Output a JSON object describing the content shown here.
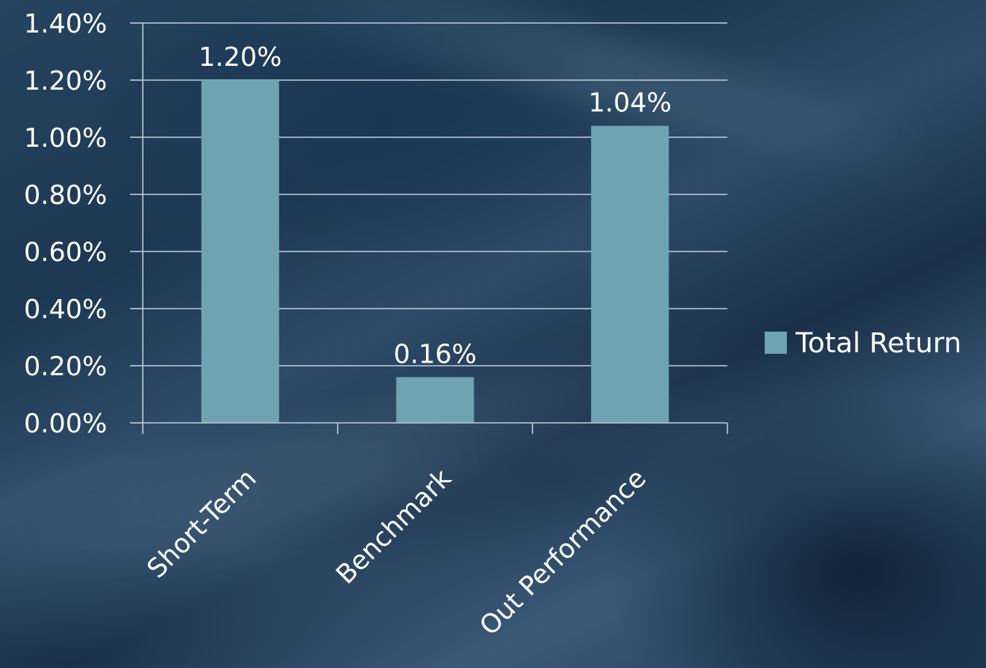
{
  "chart_data": {
    "type": "bar",
    "categories": [
      "Short-Term",
      "Benchmark",
      "Out Performance"
    ],
    "series": [
      {
        "name": "Total Return",
        "values": [
          1.2,
          0.16,
          1.04
        ],
        "data_labels": [
          "1.20%",
          "0.16%",
          "1.04%"
        ],
        "color": "#6fa3b2"
      }
    ],
    "ylim": [
      0,
      1.4
    ],
    "yticks": [
      0,
      0.2,
      0.4,
      0.6,
      0.8,
      1.0,
      1.2,
      1.4
    ],
    "ytick_labels": [
      "0.00%",
      "0.20%",
      "0.40%",
      "0.60%",
      "0.80%",
      "1.00%",
      "1.20%",
      "1.40%"
    ],
    "grid": true,
    "legend_position": "right",
    "title": "",
    "xlabel": "",
    "ylabel": ""
  },
  "colors": {
    "bar": "#6fa3b2",
    "gridline": "#b9c7d3",
    "text": "#ffffff"
  }
}
